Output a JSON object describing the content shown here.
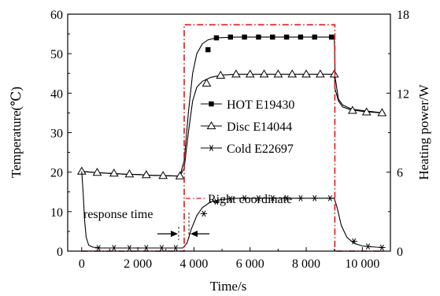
{
  "chart_data": {
    "type": "line",
    "xlabel": "Time/s",
    "ylabel": "Temperature(℃)",
    "y2label": "Heating power/W",
    "xlim": [
      -500,
      11000
    ],
    "ylim": [
      0,
      60
    ],
    "y2lim": [
      0,
      18
    ],
    "xticks": [
      0,
      2000,
      4000,
      6000,
      8000,
      10000
    ],
    "xtick_labels": [
      "0",
      "2 000",
      "4 000",
      "6 000",
      "8 000",
      "10 000"
    ],
    "yticks": [
      0,
      10,
      20,
      30,
      40,
      50,
      60
    ],
    "ytick_labels": [
      "0",
      "10",
      "20",
      "30",
      "40",
      "50",
      "60"
    ],
    "y2ticks": [
      0,
      6,
      12,
      18
    ],
    "y2tick_labels": [
      "0",
      "6",
      "12",
      "18"
    ],
    "grid": false,
    "legend": "center-right",
    "series": [
      {
        "name": "HOT E19430",
        "marker": "square-filled",
        "color": "#000000",
        "line": [
          [
            0,
            20.2
          ],
          [
            500,
            19.9
          ],
          [
            1000,
            19.7
          ],
          [
            1500,
            19.5
          ],
          [
            2000,
            19.4
          ],
          [
            2500,
            19.2
          ],
          [
            3000,
            19.1
          ],
          [
            3500,
            19.0
          ],
          [
            3650,
            23
          ],
          [
            3800,
            35
          ],
          [
            3950,
            45
          ],
          [
            4100,
            50
          ],
          [
            4300,
            52.5
          ],
          [
            4500,
            53.5
          ],
          [
            4800,
            54.0
          ],
          [
            5500,
            54.2
          ],
          [
            9000,
            54.2
          ],
          [
            9030,
            44
          ],
          [
            9150,
            38.5
          ],
          [
            9300,
            37
          ],
          [
            9600,
            36
          ],
          [
            10000,
            35.6
          ],
          [
            10500,
            35.2
          ],
          [
            10800,
            35.0
          ]
        ],
        "markers": [
          [
            4500,
            51.0
          ],
          [
            4800,
            54.0
          ],
          [
            5300,
            54.2
          ],
          [
            5800,
            54.2
          ],
          [
            6300,
            54.2
          ],
          [
            6800,
            54.2
          ],
          [
            7300,
            54.2
          ],
          [
            7800,
            54.2
          ],
          [
            8300,
            54.2
          ],
          [
            8900,
            54.2
          ]
        ]
      },
      {
        "name": "Disc E14044",
        "marker": "triangle-open",
        "color": "#000000",
        "line": [
          [
            0,
            20.2
          ],
          [
            500,
            19.9
          ],
          [
            1000,
            19.7
          ],
          [
            1500,
            19.5
          ],
          [
            2000,
            19.4
          ],
          [
            2500,
            19.2
          ],
          [
            3000,
            19.1
          ],
          [
            3500,
            19.0
          ],
          [
            3650,
            21
          ],
          [
            3800,
            30
          ],
          [
            3950,
            38
          ],
          [
            4100,
            41.5
          ],
          [
            4300,
            43.0
          ],
          [
            4600,
            44.0
          ],
          [
            5000,
            44.6
          ],
          [
            5500,
            44.8
          ],
          [
            9000,
            44.8
          ],
          [
            9030,
            41
          ],
          [
            9150,
            38
          ],
          [
            9300,
            36.5
          ],
          [
            9600,
            35.8
          ],
          [
            10000,
            35.4
          ],
          [
            10500,
            35.1
          ],
          [
            10800,
            35.0
          ]
        ],
        "markers": [
          [
            0,
            20.2
          ],
          [
            550,
            19.9
          ],
          [
            1150,
            19.7
          ],
          [
            1700,
            19.5
          ],
          [
            2300,
            19.3
          ],
          [
            2900,
            19.1
          ],
          [
            3500,
            19.0
          ],
          [
            4450,
            42.5
          ],
          [
            4950,
            44.5
          ],
          [
            5500,
            44.8
          ],
          [
            6000,
            44.8
          ],
          [
            6500,
            44.8
          ],
          [
            7000,
            44.8
          ],
          [
            7500,
            44.8
          ],
          [
            8000,
            44.8
          ],
          [
            8500,
            44.8
          ],
          [
            9000,
            44.8
          ],
          [
            9650,
            35.6
          ],
          [
            10150,
            35.2
          ],
          [
            10700,
            35.0
          ]
        ]
      },
      {
        "name": "Cold E22697",
        "marker": "asterisk",
        "color": "#000000",
        "line": [
          [
            0,
            20.2
          ],
          [
            50,
            15
          ],
          [
            100,
            8
          ],
          [
            160,
            3.5
          ],
          [
            250,
            1.5
          ],
          [
            400,
            1.0
          ],
          [
            700,
            0.8
          ],
          [
            3600,
            0.8
          ],
          [
            3750,
            2
          ],
          [
            3900,
            5.5
          ],
          [
            4100,
            9
          ],
          [
            4300,
            11
          ],
          [
            4600,
            12.5
          ],
          [
            5000,
            13.1
          ],
          [
            5600,
            13.4
          ],
          [
            9000,
            13.4
          ],
          [
            9100,
            11
          ],
          [
            9250,
            6.5
          ],
          [
            9450,
            3.5
          ],
          [
            9700,
            2.0
          ],
          [
            10000,
            1.3
          ],
          [
            10500,
            1.0
          ],
          [
            10800,
            0.9
          ]
        ],
        "markers": [
          [
            600,
            0.8
          ],
          [
            1150,
            0.8
          ],
          [
            1700,
            0.8
          ],
          [
            2300,
            0.8
          ],
          [
            2850,
            0.8
          ],
          [
            3350,
            0.8
          ],
          [
            4350,
            9.5
          ],
          [
            4800,
            12.5
          ],
          [
            5300,
            13.2
          ],
          [
            5800,
            13.4
          ],
          [
            6300,
            13.4
          ],
          [
            6800,
            13.4
          ],
          [
            7300,
            13.4
          ],
          [
            7800,
            13.4
          ],
          [
            8300,
            13.4
          ],
          [
            8850,
            13.4
          ],
          [
            9700,
            2.5
          ],
          [
            10200,
            1.2
          ],
          [
            10700,
            0.9
          ]
        ]
      },
      {
        "name": "Heating power (right axis)",
        "axis": "right",
        "style": "dash-dot",
        "color": "#e0161c",
        "line": [
          [
            0,
            0
          ],
          [
            3650,
            0
          ],
          [
            3650,
            17.2
          ],
          [
            9020,
            17.2
          ],
          [
            9020,
            0
          ],
          [
            10800,
            0
          ]
        ]
      }
    ],
    "annotations": [
      {
        "text": "Right coordinate"
      },
      {
        "text": "response time"
      }
    ]
  }
}
